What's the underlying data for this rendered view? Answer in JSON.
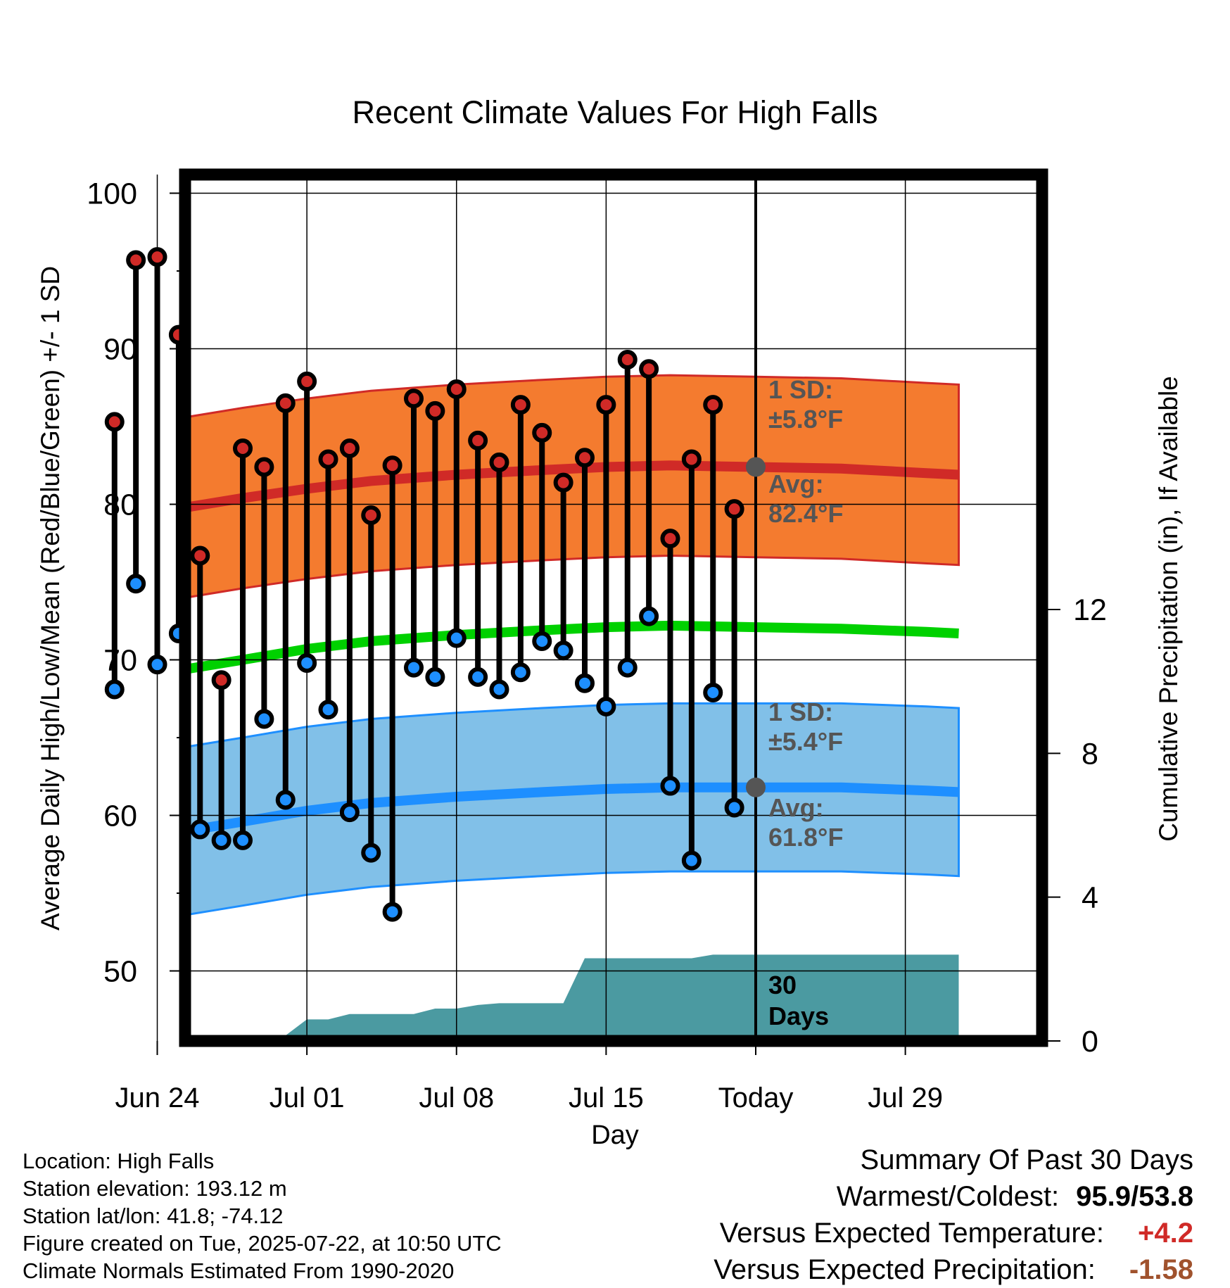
{
  "chart_data": {
    "type": "line",
    "title": "Recent Climate Values For High Falls",
    "xlabel": "Day",
    "ylabel": "Average Daily High/Low/Mean (Red/Blue/Green) +/- 1 SD",
    "y2label": "Cumulative Precipitation (in), If Available",
    "x_range_day_offset": [
      -26.7,
      13.4
    ],
    "x_reference": "Today = 2025-07-22",
    "ylim": [
      45.5,
      101.2
    ],
    "y2lim": [
      0,
      24.1
    ],
    "x_ticks": [
      {
        "offset": -28,
        "label": "Jun 24"
      },
      {
        "offset": -21,
        "label": "Jul 01"
      },
      {
        "offset": -14,
        "label": "Jul 08"
      },
      {
        "offset": -7,
        "label": "Jul 15"
      },
      {
        "offset": 0,
        "label": "Today"
      },
      {
        "offset": 7,
        "label": "Jul 29"
      }
    ],
    "y_ticks": [
      50,
      60,
      70,
      80,
      90,
      100
    ],
    "y2_ticks": [
      0,
      4,
      8,
      12
    ],
    "grid": true,
    "days": [
      {
        "offset": -30,
        "high": 85.3,
        "low": 68.1
      },
      {
        "offset": -29,
        "high": 95.7,
        "low": 74.9
      },
      {
        "offset": -28,
        "high": 95.9,
        "low": 69.7
      },
      {
        "offset": -27,
        "high": 90.9,
        "low": 71.7
      },
      {
        "offset": -26,
        "high": 76.7,
        "low": 59.1
      },
      {
        "offset": -25,
        "high": 68.7,
        "low": 58.4
      },
      {
        "offset": -24,
        "high": 83.6,
        "low": 58.4
      },
      {
        "offset": -23,
        "high": 82.4,
        "low": 66.2
      },
      {
        "offset": -22,
        "high": 86.5,
        "low": 61.0
      },
      {
        "offset": -21,
        "high": 87.9,
        "low": 69.8
      },
      {
        "offset": -20,
        "high": 82.9,
        "low": 66.8
      },
      {
        "offset": -19,
        "high": 83.6,
        "low": 60.2
      },
      {
        "offset": -18,
        "high": 79.3,
        "low": 57.6
      },
      {
        "offset": -17,
        "high": 82.5,
        "low": 53.8
      },
      {
        "offset": -16,
        "high": 86.8,
        "low": 69.5
      },
      {
        "offset": -15,
        "high": 86.0,
        "low": 68.9
      },
      {
        "offset": -14,
        "high": 87.4,
        "low": 71.4
      },
      {
        "offset": -13,
        "high": 84.1,
        "low": 68.9
      },
      {
        "offset": -12,
        "high": 82.7,
        "low": 68.1
      },
      {
        "offset": -11,
        "high": 86.4,
        "low": 69.2
      },
      {
        "offset": -10,
        "high": 84.6,
        "low": 71.2
      },
      {
        "offset": -9,
        "high": 81.4,
        "low": 70.6
      },
      {
        "offset": -8,
        "high": 83.0,
        "low": 68.5
      },
      {
        "offset": -7,
        "high": 86.4,
        "low": 67.0
      },
      {
        "offset": -6,
        "high": 89.3,
        "low": 69.5
      },
      {
        "offset": -5,
        "high": 88.7,
        "low": 72.8
      },
      {
        "offset": -4,
        "high": 77.8,
        "low": 61.9
      },
      {
        "offset": -3,
        "high": 82.9,
        "low": 57.1
      },
      {
        "offset": -2,
        "high": 86.4,
        "low": 67.9
      },
      {
        "offset": -1,
        "high": 79.7,
        "low": 60.5
      }
    ],
    "normals": {
      "offset": [
        -30.5,
        -28,
        -24,
        -21,
        -18,
        -14,
        -10,
        -7,
        -4,
        0,
        4,
        8,
        9.5
      ],
      "high_avg": [
        78.8,
        79.5,
        80.4,
        81.0,
        81.5,
        81.9,
        82.2,
        82.4,
        82.5,
        82.4,
        82.3,
        82.0,
        81.9
      ],
      "high_sd": 5.8,
      "low_avg": [
        58.0,
        58.7,
        59.6,
        60.3,
        60.8,
        61.2,
        61.5,
        61.7,
        61.8,
        61.8,
        61.8,
        61.6,
        61.5
      ],
      "low_sd": 5.4,
      "mean_avg": [
        68.4,
        69.1,
        70.0,
        70.7,
        71.2,
        71.6,
        71.9,
        72.1,
        72.2,
        72.1,
        72.0,
        71.8,
        71.7
      ]
    },
    "precip_cumulative": {
      "offset": [
        -30.5,
        -26,
        -25,
        -22,
        -21,
        -20,
        -19,
        -17,
        -16,
        -15,
        -14,
        -13,
        -12,
        -10,
        -9,
        -8,
        -7,
        -6,
        -5,
        -4,
        -3,
        -2,
        0,
        9.5
      ],
      "value": [
        0,
        0.05,
        0.15,
        0.15,
        0.6,
        0.6,
        0.75,
        0.75,
        0.75,
        0.9,
        0.9,
        1.0,
        1.05,
        1.05,
        1.05,
        2.3,
        2.3,
        2.3,
        2.3,
        2.3,
        2.3,
        2.4,
        2.4,
        2.4
      ]
    },
    "today_markers": {
      "high_avg": 82.4,
      "low_avg": 61.8
    },
    "annotations": {
      "high_sd_label": "1 SD:",
      "high_sd_value": "±5.8°F",
      "high_avg_label": "Avg:",
      "high_avg_value": "82.4°F",
      "low_sd_label": "1 SD:",
      "low_sd_value": "±5.4°F",
      "low_avg_label": "Avg:",
      "low_avg_value": "61.8°F",
      "window_line1": "30",
      "window_line2": "Days"
    },
    "colors": {
      "high_band": "#f47b2f",
      "high_line": "#d02a27",
      "low_band": "#81c0e8",
      "low_line": "#1e8fff",
      "mean_line": "#00d100",
      "precip": "#4b9aa1",
      "annotation_text": "#555555",
      "high_dot": "#d02a27",
      "low_dot": "#1e8fff"
    }
  },
  "info": {
    "location": "Location: High Falls",
    "elevation": "Station elevation: 193.12 m",
    "latlon": "Station lat/lon: 41.8; -74.12",
    "created": "Figure created on Tue, 2025-07-22, at 10:50 UTC",
    "normals": "Climate Normals Estimated From 1990-2020"
  },
  "summary": {
    "title": "Summary Of Past 30 Days",
    "warmest_label": "Warmest/Coldest:",
    "warmest_value": "95.9/53.8",
    "temp_label": "Versus Expected Temperature:",
    "temp_value": "+4.2",
    "temp_color": "#d02a27",
    "precip_label": "Versus Expected Precipitation:",
    "precip_value": "-1.58",
    "precip_color": "#a0522d"
  }
}
